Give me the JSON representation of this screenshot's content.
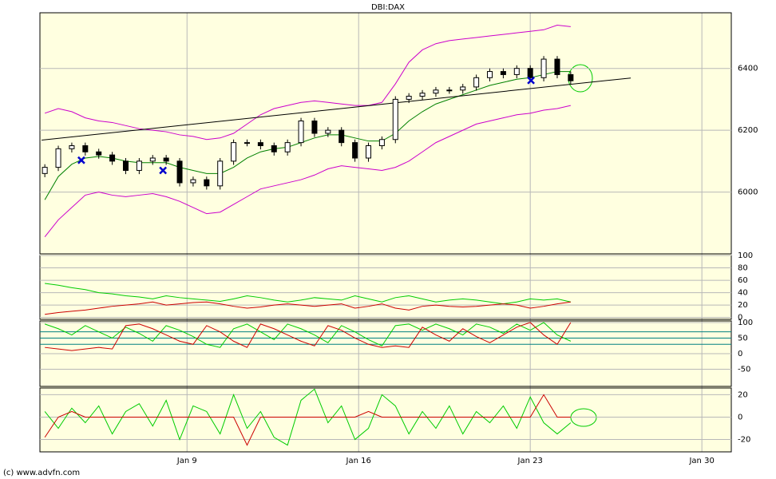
{
  "chart_data": [
    {
      "type": "candlestick",
      "title": "DBI:DAX",
      "x": [
        3.2,
        3.75,
        4.3,
        4.85,
        5.4,
        5.95,
        6.5,
        7.05,
        7.6,
        8.15,
        8.7,
        9.25,
        9.8,
        10.35,
        10.9,
        11.45,
        12,
        12.55,
        13.1,
        13.65,
        14.2,
        14.75,
        15.3,
        15.85,
        16.4,
        16.95,
        17.5,
        18.05,
        18.6,
        19.15,
        19.7,
        20.25,
        20.8,
        21.35,
        21.9,
        22.45,
        23,
        23.55,
        24.1,
        24.65
      ],
      "open": [
        6060,
        6080,
        6140,
        6150,
        6130,
        6120,
        6100,
        6070,
        6100,
        6110,
        6100,
        6030,
        6040,
        6020,
        6100,
        6160,
        6160,
        6150,
        6130,
        6160,
        6230,
        6190,
        6200,
        6160,
        6110,
        6150,
        6170,
        6300,
        6310,
        6320,
        6330,
        6330,
        6340,
        6370,
        6390,
        6380,
        6400,
        6370,
        6430,
        6380
      ],
      "high": [
        6090,
        6150,
        6160,
        6160,
        6140,
        6130,
        6110,
        6110,
        6120,
        6120,
        6110,
        6050,
        6050,
        6110,
        6170,
        6170,
        6170,
        6160,
        6170,
        6240,
        6240,
        6210,
        6210,
        6170,
        6160,
        6180,
        6310,
        6320,
        6330,
        6340,
        6340,
        6350,
        6380,
        6400,
        6400,
        6410,
        6410,
        6440,
        6440,
        6390
      ],
      "low": [
        6048,
        6068,
        6128,
        6118,
        6108,
        6088,
        6058,
        6058,
        6088,
        6088,
        6018,
        6018,
        6008,
        6008,
        6088,
        6148,
        6138,
        6118,
        6118,
        6148,
        6178,
        6178,
        6148,
        6098,
        6098,
        6138,
        6158,
        6288,
        6298,
        6308,
        6318,
        6318,
        6328,
        6358,
        6368,
        6368,
        6358,
        6358,
        6368,
        6348
      ],
      "close": [
        6080,
        6140,
        6150,
        6130,
        6120,
        6100,
        6070,
        6100,
        6110,
        6100,
        6030,
        6040,
        6020,
        6100,
        6160,
        6160,
        6150,
        6130,
        6160,
        6230,
        6190,
        6200,
        6160,
        6110,
        6150,
        6170,
        6300,
        6310,
        6320,
        6330,
        6330,
        6340,
        6370,
        6390,
        6380,
        6400,
        6370,
        6430,
        6380,
        6360
      ],
      "series": [
        {
          "color": "#cc00cc",
          "values": [
            6255,
            6270,
            6260,
            6240,
            6230,
            6225,
            6215,
            6205,
            6200,
            6195,
            6185,
            6180,
            6170,
            6175,
            6190,
            6220,
            6250,
            6270,
            6280,
            6290,
            6295,
            6290,
            6285,
            6280,
            6280,
            6290,
            6350,
            6420,
            6460,
            6480,
            6490,
            6495,
            6500,
            6505,
            6510,
            6515,
            6520,
            6525,
            6540,
            6535
          ]
        },
        {
          "color": "#008000",
          "values": [
            5975,
            6050,
            6090,
            6110,
            6115,
            6110,
            6100,
            6095,
            6095,
            6095,
            6080,
            6070,
            6060,
            6060,
            6080,
            6110,
            6130,
            6140,
            6145,
            6160,
            6175,
            6185,
            6185,
            6175,
            6165,
            6165,
            6190,
            6230,
            6260,
            6285,
            6300,
            6315,
            6330,
            6345,
            6355,
            6365,
            6370,
            6380,
            6390,
            6390
          ]
        },
        {
          "color": "#cc00cc",
          "values": [
            5855,
            5910,
            5950,
            5990,
            6000,
            5990,
            5985,
            5990,
            5995,
            5985,
            5970,
            5950,
            5930,
            5935,
            5960,
            5985,
            6010,
            6020,
            6030,
            6040,
            6055,
            6075,
            6085,
            6080,
            6075,
            6070,
            6080,
            6100,
            6130,
            6160,
            6180,
            6200,
            6220,
            6230,
            6240,
            6250,
            6255,
            6265,
            6270,
            6280
          ]
        }
      ],
      "trendline": {
        "x": [
          3.07,
          27.1
        ],
        "values": [
          6168,
          6369
        ],
        "color": "#000000"
      },
      "markers": {
        "x": [
          4.69,
          8.02,
          23.03
        ],
        "values": [
          6103,
          6070,
          6361
        ],
        "color": "#0000cc"
      },
      "xlim": [
        3,
        31.2
      ],
      "xticks": [
        {
          "value": 9,
          "label": "Jan 9"
        },
        {
          "value": 16,
          "label": "Jan 16"
        },
        {
          "value": 23,
          "label": "Jan 23"
        },
        {
          "value": 30,
          "label": "Jan 30"
        }
      ],
      "ylim": [
        5800,
        6580
      ],
      "yticks": [
        6000,
        6200,
        6400
      ],
      "grid": true
    },
    {
      "type": "line",
      "ylim": [
        -3,
        100
      ],
      "yticks": [
        0,
        20,
        40,
        60,
        80,
        100
      ],
      "grid": true,
      "series": [
        {
          "color": "#00cc00",
          "values": [
            55,
            52,
            48,
            45,
            40,
            38,
            35,
            33,
            30,
            35,
            32,
            30,
            28,
            26,
            30,
            35,
            32,
            28,
            25,
            28,
            32,
            30,
            28,
            35,
            30,
            25,
            32,
            35,
            30,
            25,
            28,
            30,
            28,
            25,
            22,
            25,
            30,
            28,
            30,
            25
          ]
        },
        {
          "color": "#cc0000",
          "values": [
            5,
            8,
            10,
            12,
            15,
            18,
            20,
            22,
            25,
            20,
            22,
            24,
            25,
            22,
            18,
            15,
            17,
            20,
            22,
            20,
            18,
            20,
            22,
            15,
            18,
            22,
            15,
            12,
            18,
            20,
            18,
            17,
            18,
            20,
            22,
            20,
            15,
            18,
            22,
            25
          ]
        }
      ]
    },
    {
      "type": "line",
      "ylim": [
        -105,
        105
      ],
      "yticks": [
        -50,
        0,
        50,
        100
      ],
      "levels": [
        70,
        50,
        30
      ],
      "grid": true,
      "series": [
        {
          "color": "#00cc00",
          "values": [
            95,
            80,
            60,
            90,
            70,
            50,
            85,
            65,
            40,
            90,
            75,
            55,
            30,
            20,
            80,
            95,
            70,
            45,
            95,
            80,
            60,
            35,
            90,
            70,
            45,
            25,
            90,
            95,
            75,
            95,
            80,
            60,
            95,
            85,
            65,
            95,
            75,
            100,
            60,
            40
          ]
        },
        {
          "color": "#cc0000",
          "values": [
            20,
            15,
            10,
            15,
            20,
            15,
            90,
            95,
            80,
            60,
            40,
            30,
            90,
            70,
            40,
            20,
            95,
            80,
            60,
            40,
            25,
            90,
            75,
            50,
            30,
            20,
            25,
            20,
            85,
            60,
            40,
            80,
            55,
            35,
            60,
            85,
            100,
            60,
            30,
            100
          ]
        }
      ]
    },
    {
      "type": "line",
      "ylim": [
        -31,
        26
      ],
      "yticks": [
        -20,
        0,
        20
      ],
      "grid": true,
      "series": [
        {
          "color": "#00cc00",
          "values": [
            5,
            -10,
            8,
            -5,
            10,
            -15,
            5,
            12,
            -8,
            15,
            -20,
            10,
            5,
            -15,
            20,
            -10,
            5,
            -18,
            -25,
            15,
            25,
            -5,
            10,
            -20,
            -10,
            20,
            10,
            -15,
            5,
            -10,
            10,
            -15,
            5,
            -5,
            10,
            -10,
            18,
            -5,
            -15,
            -5
          ]
        },
        {
          "color": "#cc0000",
          "values": [
            -18,
            0,
            5,
            0,
            0,
            0,
            0,
            0,
            0,
            0,
            0,
            0,
            0,
            0,
            0,
            -25,
            0,
            0,
            0,
            0,
            0,
            0,
            0,
            0,
            5,
            0,
            0,
            0,
            0,
            0,
            0,
            0,
            0,
            0,
            0,
            0,
            0,
            20,
            0,
            0
          ]
        }
      ]
    }
  ],
  "footer": "(c) www.advfn.com"
}
